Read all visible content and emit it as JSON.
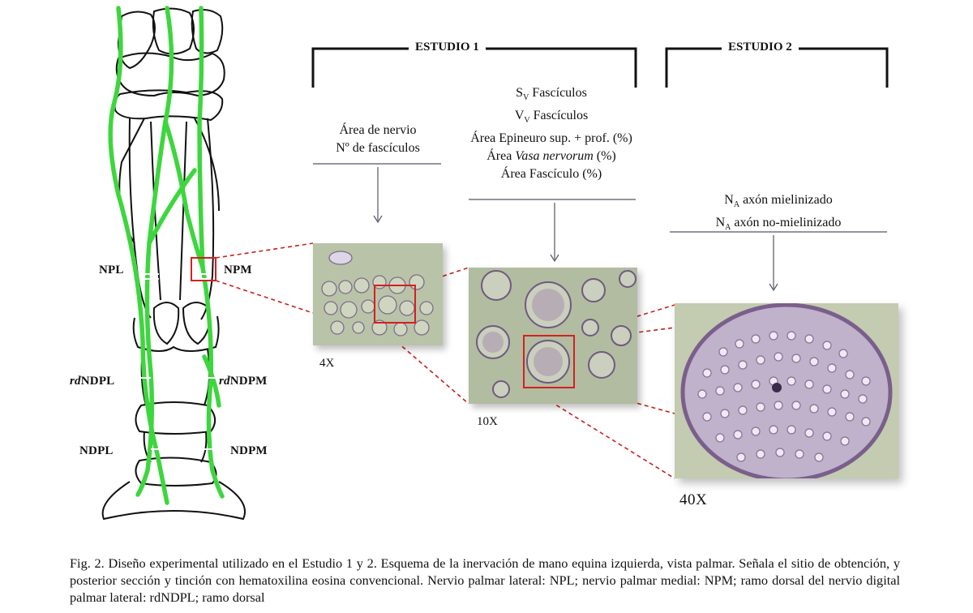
{
  "colors": {
    "nerve": "#3ed63e",
    "bone_line": "#111111",
    "zoom_box": "#d42020",
    "bracket": "#111111"
  },
  "studies": [
    {
      "title": "ESTUDIO 1"
    },
    {
      "title": "ESTUDIO 2"
    }
  ],
  "measures": {
    "study1_4x": [
      "Área de nervio",
      "Nº de fascículos"
    ],
    "study1_10x": {
      "sv_sym": "S",
      "sv_sub": "V",
      "sv_text": " Fascículos",
      "vv_sym": "V",
      "vv_sub": "V",
      "vv_text": " Fascículos",
      "epineuro": "Área Epineuro sup. + prof. (%)",
      "vasa_prefix": "Área ",
      "vasa_italic": "Vasa nervorum",
      "vasa_suffix": " (%)",
      "fasciculo": "Área Fascículo (%)"
    },
    "study2_40x": {
      "na_sym": "N",
      "na_sub": "A",
      "mielin": " axón mielinizado",
      "nomielin": " axón no-mielinizado"
    }
  },
  "nerve_labels": {
    "npl": "NPL",
    "npm": "NPM",
    "rdndpl_italic": "rd",
    "rdndpl_rest": "NDPL",
    "rdndpm_italic": "rd",
    "rdndpm_rest": "NDPM",
    "ndpl": "NDPL",
    "ndpm": "NDPM"
  },
  "magnifications": [
    "4X",
    "10X",
    "40X"
  ],
  "caption": "Fig. 2. Diseño experimental utilizado en el Estudio 1 y 2. Esquema de la inervación de mano equina izquierda, vista palmar. Señala el sitio de obtención, y posterior sección y tinción con hematoxilina eosina convencional. Nervio palmar lateral: NPL; nervio palmar medial: NPM; ramo dorsal del nervio digital palmar lateral: rdNDPL; ramo dorsal"
}
